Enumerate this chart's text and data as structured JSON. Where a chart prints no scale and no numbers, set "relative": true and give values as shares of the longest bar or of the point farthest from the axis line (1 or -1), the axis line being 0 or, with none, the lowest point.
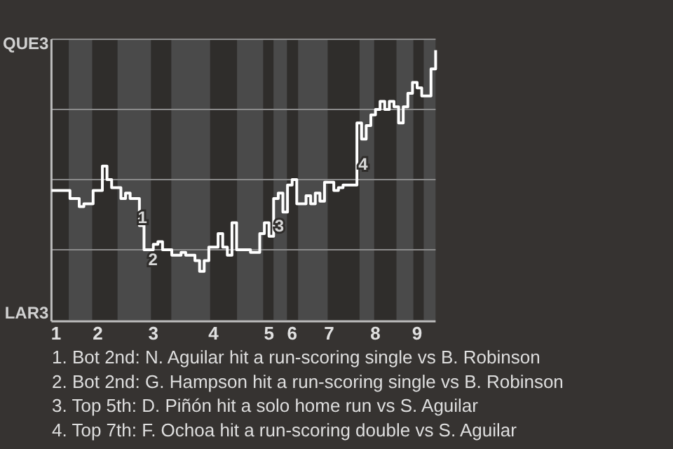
{
  "chart_data": {
    "type": "step",
    "relative": true,
    "categories": [
      null,
      "1",
      null,
      null,
      null,
      null,
      null,
      null,
      null,
      null,
      "2",
      null,
      null,
      null,
      null,
      null,
      null,
      null,
      null,
      null,
      null,
      null,
      "3",
      null,
      null,
      null,
      null,
      null,
      null,
      null,
      null,
      null,
      null,
      null,
      null,
      "4",
      null,
      null,
      null,
      null,
      null,
      null,
      null,
      null,
      null,
      null,
      null,
      "5",
      null,
      null,
      null,
      null,
      "6",
      null,
      null,
      null,
      null,
      null,
      null,
      null,
      "7",
      null,
      null,
      null,
      null,
      null,
      null,
      null,
      null,
      null,
      "8",
      null,
      null,
      null,
      null,
      null,
      null,
      null,
      null,
      "9",
      null,
      null,
      null,
      null
    ],
    "series": [
      {
        "color": "#ffffff",
        "values": [
          0.48,
          0.48,
          0.48,
          0.48,
          0.45,
          0.45,
          0.42,
          0.43,
          0.43,
          0.48,
          0.48,
          0.57,
          0.52,
          0.49,
          0.49,
          0.45,
          0.47,
          0.45,
          0.45,
          0.35,
          0.26,
          0.26,
          0.28,
          0.29,
          0.26,
          0.26,
          0.24,
          0.24,
          0.25,
          0.24,
          0.24,
          0.22,
          0.18,
          0.22,
          0.27,
          0.27,
          0.32,
          0.27,
          0.24,
          0.36,
          0.26,
          0.26,
          0.26,
          0.25,
          0.25,
          0.32,
          0.36,
          0.31,
          0.45,
          0.47,
          0.4,
          0.5,
          0.52,
          0.43,
          0.43,
          0.46,
          0.43,
          0.47,
          0.44,
          0.51,
          0.51,
          0.48,
          0.49,
          0.5,
          0.5,
          0.5,
          0.73,
          0.67,
          0.72,
          0.76,
          0.78,
          0.81,
          0.78,
          0.81,
          0.79,
          0.73,
          0.79,
          0.84,
          0.88,
          0.86,
          0.83,
          0.83,
          0.93,
          1
        ]
      }
    ],
    "grid": "y",
    "annotations": [
      "QUE3",
      "LAR3",
      "1",
      "2",
      "3",
      "4",
      "1. Bot 2nd: N. Aguilar hit a run-scoring single vs B. Robinson",
      "2. Bot 2nd: G. Hampson hit a run-scoring single vs B. Robinson",
      "3. Top 5th: D. Piñón hit a solo home run vs S. Aguilar",
      "4. Top 7th: F. Ochoa hit a run-scoring double vs S. Aguilar"
    ]
  }
}
